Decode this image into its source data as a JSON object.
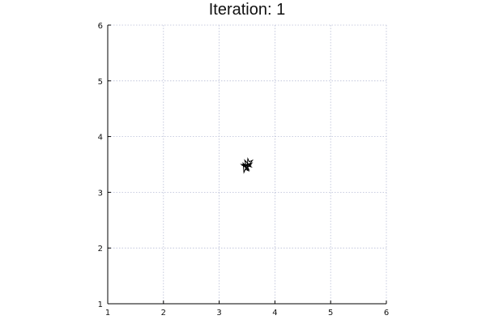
{
  "chart_data": {
    "type": "scatter",
    "title": "Iteration: 1",
    "xlabel": "",
    "ylabel": "",
    "xlim": [
      1,
      6
    ],
    "ylim": [
      1,
      6
    ],
    "xticks": [
      1,
      2,
      3,
      4,
      5,
      6
    ],
    "yticks": [
      1,
      2,
      3,
      4,
      5,
      6
    ],
    "grid": true,
    "grid_color": "#b8bdd6",
    "axis_color": "#000000",
    "marker_color": "#000000",
    "series": [
      {
        "marker": "triangle-arrow",
        "points": [
          {
            "x": 3.5,
            "y": 3.5,
            "angle": 30
          },
          {
            "x": 3.48,
            "y": 3.47,
            "angle": 200
          },
          {
            "x": 3.53,
            "y": 3.52,
            "angle": 110
          },
          {
            "x": 3.46,
            "y": 3.44,
            "angle": 250
          },
          {
            "x": 3.51,
            "y": 3.48,
            "angle": 330
          }
        ]
      }
    ]
  }
}
